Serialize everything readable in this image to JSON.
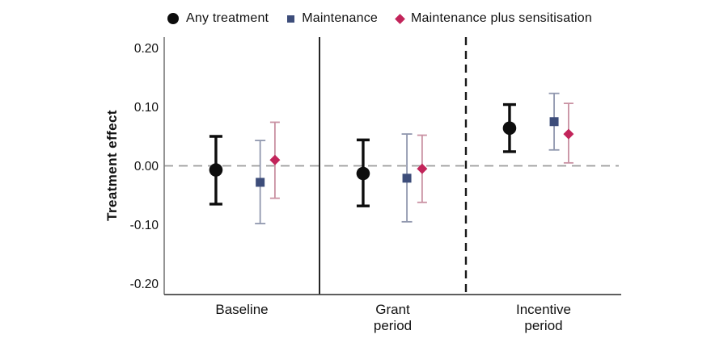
{
  "chart_data": {
    "type": "scatter",
    "subtype": "point-estimates-with-confidence-intervals",
    "title": "",
    "xlabel": "",
    "ylabel": "Treatment effect",
    "ylim": [
      -0.22,
      0.22
    ],
    "grid": false,
    "legend_position": "top",
    "zero_reference_line": 0.0,
    "yticks": [
      {
        "value": 0.2,
        "label": "0.20"
      },
      {
        "value": 0.1,
        "label": "0.10"
      },
      {
        "value": 0.0,
        "label": "0.00"
      },
      {
        "value": -0.1,
        "label": "-0.10"
      },
      {
        "value": -0.2,
        "label": "-0.20"
      }
    ],
    "categories": [
      {
        "label": "Baseline",
        "lines": [
          "Baseline"
        ]
      },
      {
        "label": "Grant period",
        "lines": [
          "Grant",
          "period"
        ]
      },
      {
        "label": "Incentive period",
        "lines": [
          "Incentive",
          "period"
        ]
      }
    ],
    "panel_separators": [
      {
        "between": "Baseline and Grant period",
        "style": "solid"
      },
      {
        "between": "Grant period and Incentive period",
        "style": "dashed"
      }
    ],
    "series": [
      {
        "name": "Any treatment",
        "marker": "circle",
        "color": "#0d0d0d",
        "ci_color": "#0d0d0d",
        "points": [
          {
            "category": "Baseline",
            "est": -0.007,
            "lo": -0.065,
            "hi": 0.05
          },
          {
            "category": "Grant period",
            "est": -0.013,
            "lo": -0.068,
            "hi": 0.044
          },
          {
            "category": "Incentive period",
            "est": 0.064,
            "lo": 0.024,
            "hi": 0.104
          }
        ]
      },
      {
        "name": "Maintenance",
        "marker": "square",
        "color": "#3d4d7a",
        "ci_color": "#9097ae",
        "points": [
          {
            "category": "Baseline",
            "est": -0.028,
            "lo": -0.098,
            "hi": 0.043
          },
          {
            "category": "Grant period",
            "est": -0.021,
            "lo": -0.095,
            "hi": 0.054
          },
          {
            "category": "Incentive period",
            "est": 0.075,
            "lo": 0.027,
            "hi": 0.123
          }
        ]
      },
      {
        "name": "Maintenance plus sensitisation",
        "marker": "diamond",
        "color": "#c2245a",
        "ci_color": "#c991a2",
        "points": [
          {
            "category": "Baseline",
            "est": 0.01,
            "lo": -0.055,
            "hi": 0.074
          },
          {
            "category": "Grant period",
            "est": -0.005,
            "lo": -0.062,
            "hi": 0.052
          },
          {
            "category": "Incentive period",
            "est": 0.054,
            "lo": 0.005,
            "hi": 0.106
          }
        ]
      }
    ],
    "colors": {
      "axis_y": "#7a7a7a",
      "axis_x": "#474747",
      "zero_line": "#9b9b9b",
      "separator": "#1a1a1a",
      "text": "#111111"
    }
  }
}
